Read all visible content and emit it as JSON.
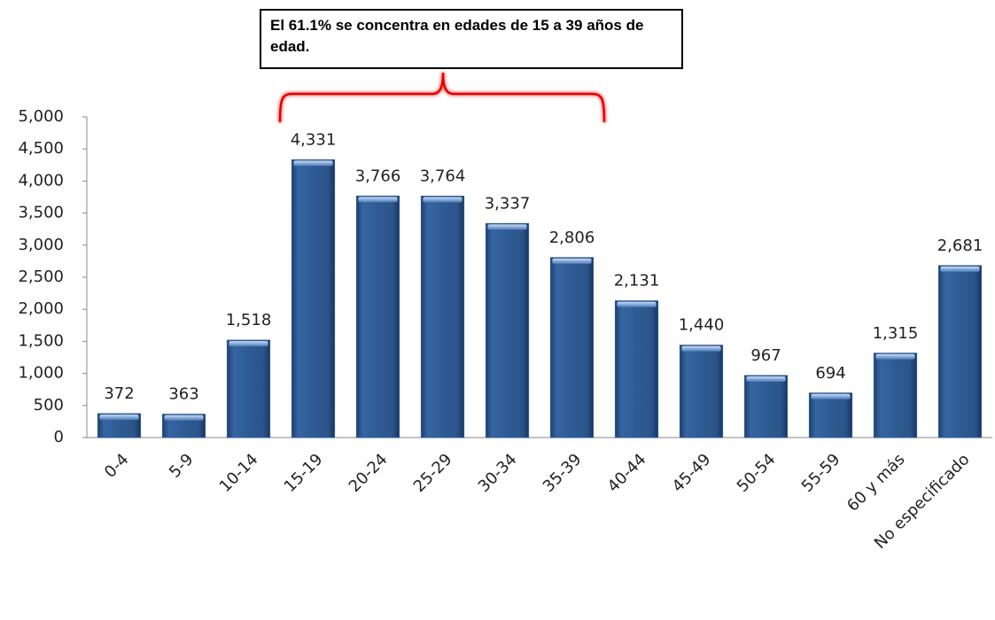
{
  "chart_data": {
    "type": "bar",
    "annotation": "El 61.1% se concentra en edades de 15 a 39 años de edad.",
    "categories": [
      "0-4",
      "5-9",
      "10-14",
      "15-19",
      "20-24",
      "25-29",
      "30-34",
      "35-39",
      "40-44",
      "45-49",
      "50-54",
      "55-59",
      "60 y más",
      "No especificado"
    ],
    "values": [
      372,
      363,
      1518,
      4331,
      3766,
      3764,
      3337,
      2806,
      2131,
      1440,
      967,
      694,
      1315,
      2681
    ],
    "value_labels": [
      "372",
      "363",
      "1,518",
      "4,331",
      "3,766",
      "3,764",
      "3,337",
      "2,806",
      "2,131",
      "1,440",
      "967",
      "694",
      "1,315",
      "2,681"
    ],
    "color": "#2f5b93",
    "ylim": [
      0,
      5000
    ],
    "yticks": [
      0,
      500,
      {
        "value": 1000,
        "label": "1,000"
      },
      {
        "value": 1500,
        "label": "1,500"
      },
      {
        "value": 2000,
        "label": "2,000"
      },
      {
        "value": 2500,
        "label": "2,500"
      },
      {
        "value": 3000,
        "label": "3,000"
      },
      {
        "value": 3500,
        "label": "3,500"
      },
      {
        "value": 4000,
        "label": "4,000"
      },
      {
        "value": 4500,
        "label": "4,500"
      },
      {
        "value": 5000,
        "label": "5,000"
      }
    ],
    "grid": false
  }
}
